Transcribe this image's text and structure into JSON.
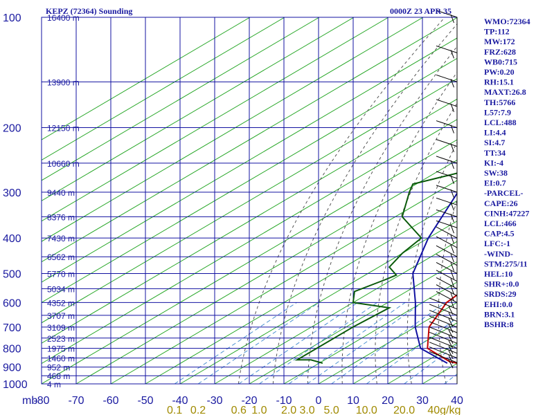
{
  "header": {
    "station": "KEPZ (72364) Sounding",
    "time": "0000Z 23 APR 35"
  },
  "chart_data": {
    "type": "line",
    "title": "KEPZ (72364) Sounding",
    "subtitle": "0000Z 23 APR 35",
    "x_axis": {
      "label": "",
      "ticks": [
        "-80",
        "-70",
        "-60",
        "-50",
        "-40",
        "-30",
        "-20",
        "-10",
        "0",
        "10",
        "20",
        "30",
        "40"
      ],
      "range": [
        -80,
        40
      ]
    },
    "y_axis": {
      "label": "mb",
      "scale": "log",
      "ticks": [
        "100",
        "200",
        "300",
        "400",
        "500",
        "600",
        "700",
        "800",
        "900",
        "1000"
      ],
      "range": [
        1000,
        100
      ]
    },
    "height_labels": [
      "16400 m",
      "13900 m",
      "12150 m",
      "10660 m",
      "9440 m",
      "8376 m",
      "7430 m",
      "6562 m",
      "5770 m",
      "5034 m",
      "4352 m",
      "3707 m",
      "3109 m",
      "2523 m",
      "1975 m",
      "1460 m",
      "952 m",
      "468 m",
      "4 m"
    ],
    "height_pressures": [
      100,
      150,
      200,
      250,
      300,
      350,
      400,
      450,
      500,
      550,
      600,
      650,
      700,
      750,
      800,
      850,
      900,
      950,
      1000
    ],
    "mixing_ratio_labels": [
      "0.1",
      "0.2",
      "0.6",
      "1.0",
      "2.0",
      "3.0",
      "5.0",
      "10.0",
      "20.0",
      "40g/kg"
    ],
    "mixing_ratio_values": [
      0.1,
      0.2,
      0.6,
      1.0,
      2.0,
      3.0,
      5.0,
      10.0,
      20.0,
      40.0
    ],
    "grid": true,
    "series": [
      {
        "role": "temperature",
        "color": "#c00000",
        "points": [
          [
            100,
            -70
          ],
          [
            120,
            -67
          ],
          [
            130,
            -62
          ],
          [
            150,
            -62
          ],
          [
            170,
            -60
          ],
          [
            200,
            -58
          ],
          [
            230,
            -55
          ],
          [
            250,
            -52
          ],
          [
            300,
            -42
          ],
          [
            350,
            -35
          ],
          [
            400,
            -28
          ],
          [
            450,
            -20
          ],
          [
            500,
            -12
          ],
          [
            540,
            -6
          ],
          [
            560,
            -4
          ],
          [
            600,
            -3
          ],
          [
            700,
            4
          ],
          [
            800,
            14
          ],
          [
            870,
            27
          ],
          [
            878,
            30
          ]
        ]
      },
      {
        "role": "dewpoint",
        "color": "#0a5a0a",
        "points": [
          [
            170,
            -85
          ],
          [
            230,
            -72
          ],
          [
            265,
            -63
          ],
          [
            285,
            -71
          ],
          [
            300,
            -68
          ],
          [
            350,
            -58
          ],
          [
            400,
            -42
          ],
          [
            440,
            -40
          ],
          [
            480,
            -37
          ],
          [
            505,
            -31
          ],
          [
            520,
            -32
          ],
          [
            560,
            -35
          ],
          [
            600,
            -30
          ],
          [
            620,
            -17
          ],
          [
            700,
            -18
          ],
          [
            800,
            -18
          ],
          [
            860,
            -18
          ],
          [
            860,
            -14
          ],
          [
            878,
            -9
          ]
        ]
      },
      {
        "role": "parcel",
        "color": "#1010a0",
        "points": [
          [
            165,
            -80
          ],
          [
            250,
            -64
          ],
          [
            300,
            -54
          ],
          [
            400,
            -40
          ],
          [
            500,
            -27
          ],
          [
            600,
            -12
          ],
          [
            700,
            0
          ],
          [
            800,
            12
          ],
          [
            878,
            27
          ]
        ]
      }
    ]
  },
  "indices": [
    "WMO:72364",
    "TP:112",
    "MW:172",
    "FRZ:628",
    "WB0:715",
    "PW:0.20",
    "RH:15.1",
    "MAXT:26.8",
    "TH:5766",
    "L57:7.9",
    "LCL:488",
    "LI:4.4",
    "SI:4.7",
    "TT:34",
    "KI:-4",
    "SW:38",
    "EI:0.7",
    "-PARCEL-",
    "CAPE:26",
    "CINH:47227",
    "LCL:466",
    "CAP:4.5",
    "LFC:-1",
    "-WIND-",
    "STM:275/11",
    "HEL:10",
    "SHR+:0.0",
    "SRDS:29",
    "EHI:0.0",
    "BRN:3.1",
    "BSHR:8"
  ],
  "colors": {
    "grid": "#1010a0",
    "isotherm": "#2aa82a",
    "dry_adiabat": "#555555",
    "mixing_ratio": "#4a90d0",
    "temperature": "#c00000",
    "dewpoint": "#0a5a0a",
    "parcel": "#1010a0",
    "text": "#1a1aa0",
    "mix_text": "#a08a00"
  }
}
